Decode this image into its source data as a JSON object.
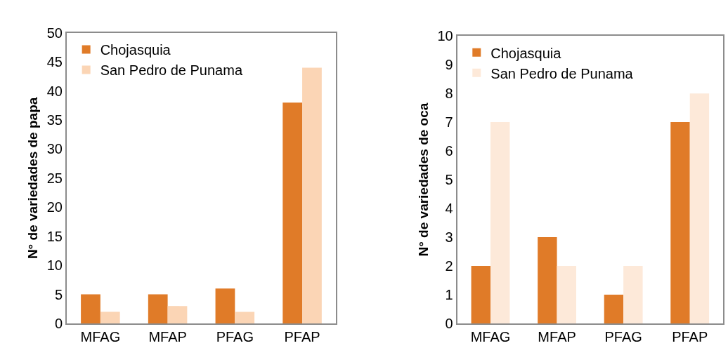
{
  "chart_data": [
    {
      "type": "bar",
      "categories": [
        "MFAG",
        "MFAP",
        "PFAG",
        "PFAP"
      ],
      "ylabel": "N° de variedades de papa",
      "ylim": [
        0,
        50
      ],
      "yticks": [
        0,
        5,
        10,
        15,
        20,
        25,
        30,
        35,
        40,
        45,
        50
      ],
      "legend": "top left",
      "series": [
        {
          "name": "Chojasquia",
          "color": "#e07b28",
          "values": [
            5,
            5,
            6,
            38
          ]
        },
        {
          "name": "San Pedro de Punama",
          "color": "#fbd5b5",
          "values": [
            2,
            3,
            2,
            44
          ]
        }
      ]
    },
    {
      "type": "bar",
      "categories": [
        "MFAG",
        "MFAP",
        "PFAG",
        "PFAP"
      ],
      "ylabel": "N° de variedades de oca",
      "ylim": [
        0,
        10
      ],
      "yticks": [
        0,
        1,
        2,
        3,
        4,
        5,
        6,
        7,
        8,
        9,
        10
      ],
      "legend": "top left",
      "series": [
        {
          "name": "Chojasquia",
          "color": "#e07b28",
          "values": [
            2,
            3,
            1,
            7
          ]
        },
        {
          "name": "San Pedro de Punama",
          "color": "#fde9d9",
          "values": [
            7,
            2,
            2,
            8
          ]
        }
      ]
    }
  ]
}
